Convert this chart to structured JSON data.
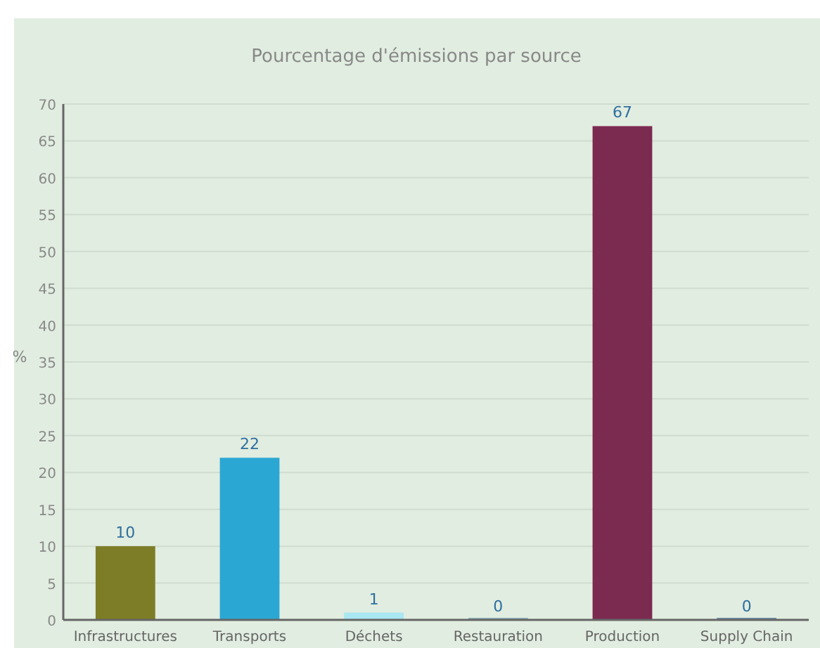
{
  "chart_data": {
    "type": "bar",
    "title": "Pourcentage d'émissions par source",
    "ylabel": "%",
    "categories": [
      "Infrastructures",
      "Transports",
      "Déchets",
      "Restauration",
      "Production",
      "Supply Chain"
    ],
    "values": [
      10,
      22,
      1,
      0,
      67,
      0
    ],
    "colors": [
      "#7d7d27",
      "#2ba7d3",
      "#a9e7f2",
      "#8fb0b8",
      "#7b2a50",
      "#6f8fa8"
    ],
    "ylim": [
      0,
      70
    ],
    "yticks": [
      0,
      5,
      10,
      15,
      20,
      25,
      30,
      35,
      40,
      45,
      50,
      55,
      60,
      65,
      70
    ],
    "grid": "y",
    "data_labels": true
  }
}
